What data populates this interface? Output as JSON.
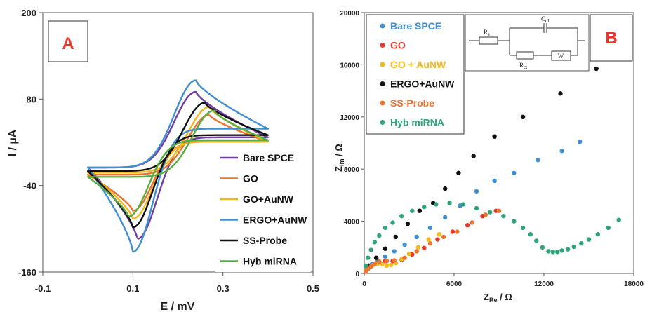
{
  "chart_data": [
    {
      "panel": "A",
      "type": "line",
      "xlabel": "E / mV",
      "ylabel": "I / µA",
      "xlim": [
        -0.1,
        0.5
      ],
      "ylim": [
        -160,
        200
      ],
      "xticks": [
        "-0.1",
        "0.1",
        "0.3",
        "0.5"
      ],
      "yticks": [
        "-160",
        "-40",
        "80",
        "200"
      ],
      "legend_position": "right",
      "series": [
        {
          "name": "Bare SPCE",
          "color": "#6f3fa3",
          "E1": 0.0,
          "E2": 0.4,
          "Epa": 0.24,
          "Ipa": 90,
          "Epc": 0.11,
          "Ipc": -114,
          "I_at_E1": -15,
          "I_at_E2": 27
        },
        {
          "name": "GO",
          "color": "#ec7330",
          "E1": 0.0,
          "E2": 0.4,
          "Epa": 0.27,
          "Ipa": 58,
          "Epc": 0.1,
          "Ipc": -75,
          "I_at_E1": -25,
          "I_at_E2": 21
        },
        {
          "name": "GO+AuNW",
          "color": "#f6b81d",
          "E1": 0.0,
          "E2": 0.4,
          "Epa": 0.27,
          "Ipa": 69,
          "Epc": 0.1,
          "Ipc": -86,
          "I_at_E1": -22,
          "I_at_E2": 21
        },
        {
          "name": "ERGO+AuNW",
          "color": "#3f8fd2",
          "E1": 0.0,
          "E2": 0.4,
          "Epa": 0.24,
          "Ipa": 106,
          "Epc": 0.1,
          "Ipc": -132,
          "I_at_E1": -15,
          "I_at_E2": 39
        },
        {
          "name": "SS-Probe",
          "color": "#111111",
          "E1": 0.0,
          "E2": 0.4,
          "Epa": 0.26,
          "Ipa": 75,
          "Epc": 0.1,
          "Ipc": -98,
          "I_at_E1": -20,
          "I_at_E2": 30
        },
        {
          "name": "Hyb miRNA",
          "color": "#5aac3f",
          "E1": 0.0,
          "E2": 0.4,
          "Epa": 0.28,
          "Ipa": 64,
          "Epc": 0.09,
          "Ipc": -83,
          "I_at_E1": -28,
          "I_at_E2": 23
        }
      ]
    },
    {
      "panel": "B",
      "type": "scatter",
      "xlabel": {
        "main": "Z",
        "sub": "Re",
        "unit": "/ Ω"
      },
      "ylabel": {
        "main": "Z",
        "sub": "Im",
        "unit": "/ Ω"
      },
      "xlim": [
        0,
        18000
      ],
      "ylim": [
        0,
        20000
      ],
      "xticks": [
        "0",
        "6000",
        "12000",
        "18000"
      ],
      "yticks": [
        "0",
        "4000",
        "8000",
        "12000",
        "16000",
        "20000"
      ],
      "legend_position": "top-left",
      "series": [
        {
          "name": "Bare SPCE",
          "color": "#3f8fd2",
          "points": [
            [
              200,
              400
            ],
            [
              500,
              700
            ],
            [
              900,
              1000
            ],
            [
              1400,
              1300
            ],
            [
              2000,
              1700
            ],
            [
              2700,
              2200
            ],
            [
              3500,
              2800
            ],
            [
              4400,
              3500
            ],
            [
              5400,
              4300
            ],
            [
              6400,
              5200
            ],
            [
              7500,
              6300
            ],
            [
              8700,
              7100
            ],
            [
              10000,
              7700
            ],
            [
              11600,
              8700
            ],
            [
              13200,
              9400
            ],
            [
              14400,
              10100
            ]
          ]
        },
        {
          "name": "GO",
          "color": "#e8362d",
          "points": [
            [
              100,
              150
            ],
            [
              250,
              350
            ],
            [
              450,
              550
            ],
            [
              700,
              750
            ],
            [
              1000,
              900
            ],
            [
              1400,
              950
            ],
            [
              1900,
              950
            ],
            [
              2500,
              1050
            ],
            [
              3200,
              1450
            ],
            [
              4000,
              1950
            ],
            [
              4900,
              2600
            ],
            [
              5900,
              3200
            ],
            [
              6900,
              3700
            ],
            [
              7900,
              4400
            ],
            [
              8800,
              4800
            ]
          ]
        },
        {
          "name": "GO + AuNW",
          "color": "#f6b81d",
          "points": [
            [
              100,
              200
            ],
            [
              300,
              450
            ],
            [
              600,
              650
            ],
            [
              900,
              750
            ],
            [
              1200,
              700
            ],
            [
              1500,
              600
            ],
            [
              1800,
              650
            ],
            [
              2100,
              800
            ],
            [
              2500,
              1100
            ],
            [
              3000,
              1500
            ],
            [
              3600,
              2000
            ],
            [
              4300,
              2600
            ],
            [
              5000,
              3000
            ]
          ]
        },
        {
          "name": "ERGO+AuNW",
          "color": "#111111",
          "points": [
            [
              300,
              600
            ],
            [
              800,
              1200
            ],
            [
              1400,
              1900
            ],
            [
              2100,
              2800
            ],
            [
              2900,
              3800
            ],
            [
              3700,
              4800
            ],
            [
              4600,
              5400
            ],
            [
              5400,
              6500
            ],
            [
              6300,
              7700
            ],
            [
              7300,
              9000
            ],
            [
              8700,
              10500
            ],
            [
              10600,
              12000
            ],
            [
              13100,
              13800
            ],
            [
              15500,
              15700
            ]
          ]
        },
        {
          "name": "SS-Probe",
          "color": "#ec7330",
          "points": [
            [
              100,
              150
            ],
            [
              250,
              350
            ],
            [
              450,
              550
            ],
            [
              700,
              750
            ],
            [
              1000,
              900
            ],
            [
              1500,
              950
            ],
            [
              2000,
              1000
            ],
            [
              2700,
              1200
            ],
            [
              3500,
              1700
            ],
            [
              4400,
              2300
            ],
            [
              5300,
              2800
            ],
            [
              6200,
              3200
            ],
            [
              7200,
              3900
            ],
            [
              8100,
              4500
            ],
            [
              9000,
              4800
            ]
          ]
        },
        {
          "name": "Hyb miRNA",
          "color": "#2fa579",
          "points": [
            [
              100,
              600
            ],
            [
              250,
              1200
            ],
            [
              450,
              1800
            ],
            [
              700,
              2400
            ],
            [
              1000,
              2900
            ],
            [
              1400,
              3500
            ],
            [
              1900,
              3900
            ],
            [
              2500,
              4400
            ],
            [
              3200,
              4800
            ],
            [
              4000,
              5100
            ],
            [
              4800,
              5300
            ],
            [
              5700,
              5400
            ],
            [
              6600,
              5300
            ],
            [
              7500,
              5000
            ],
            [
              8400,
              4700
            ],
            [
              9300,
              4400
            ],
            [
              10000,
              4000
            ],
            [
              10600,
              3500
            ],
            [
              11100,
              3000
            ],
            [
              11500,
              2500
            ],
            [
              11900,
              2000
            ],
            [
              12300,
              1700
            ],
            [
              12600,
              1650
            ],
            [
              12900,
              1650
            ],
            [
              13200,
              1750
            ],
            [
              13600,
              1850
            ],
            [
              14000,
              2050
            ],
            [
              14500,
              2300
            ],
            [
              15000,
              2600
            ],
            [
              15600,
              3000
            ],
            [
              16300,
              3500
            ],
            [
              17000,
              4100
            ]
          ]
        }
      ]
    }
  ],
  "panel_labels": {
    "a": "A",
    "b": "B"
  },
  "inset_circuit": {
    "rs": "R",
    "rs_sub": "s",
    "cdl": "C",
    "cdl_sub": "dl",
    "rct": "R",
    "rct_sub": "ct",
    "w": "W"
  }
}
